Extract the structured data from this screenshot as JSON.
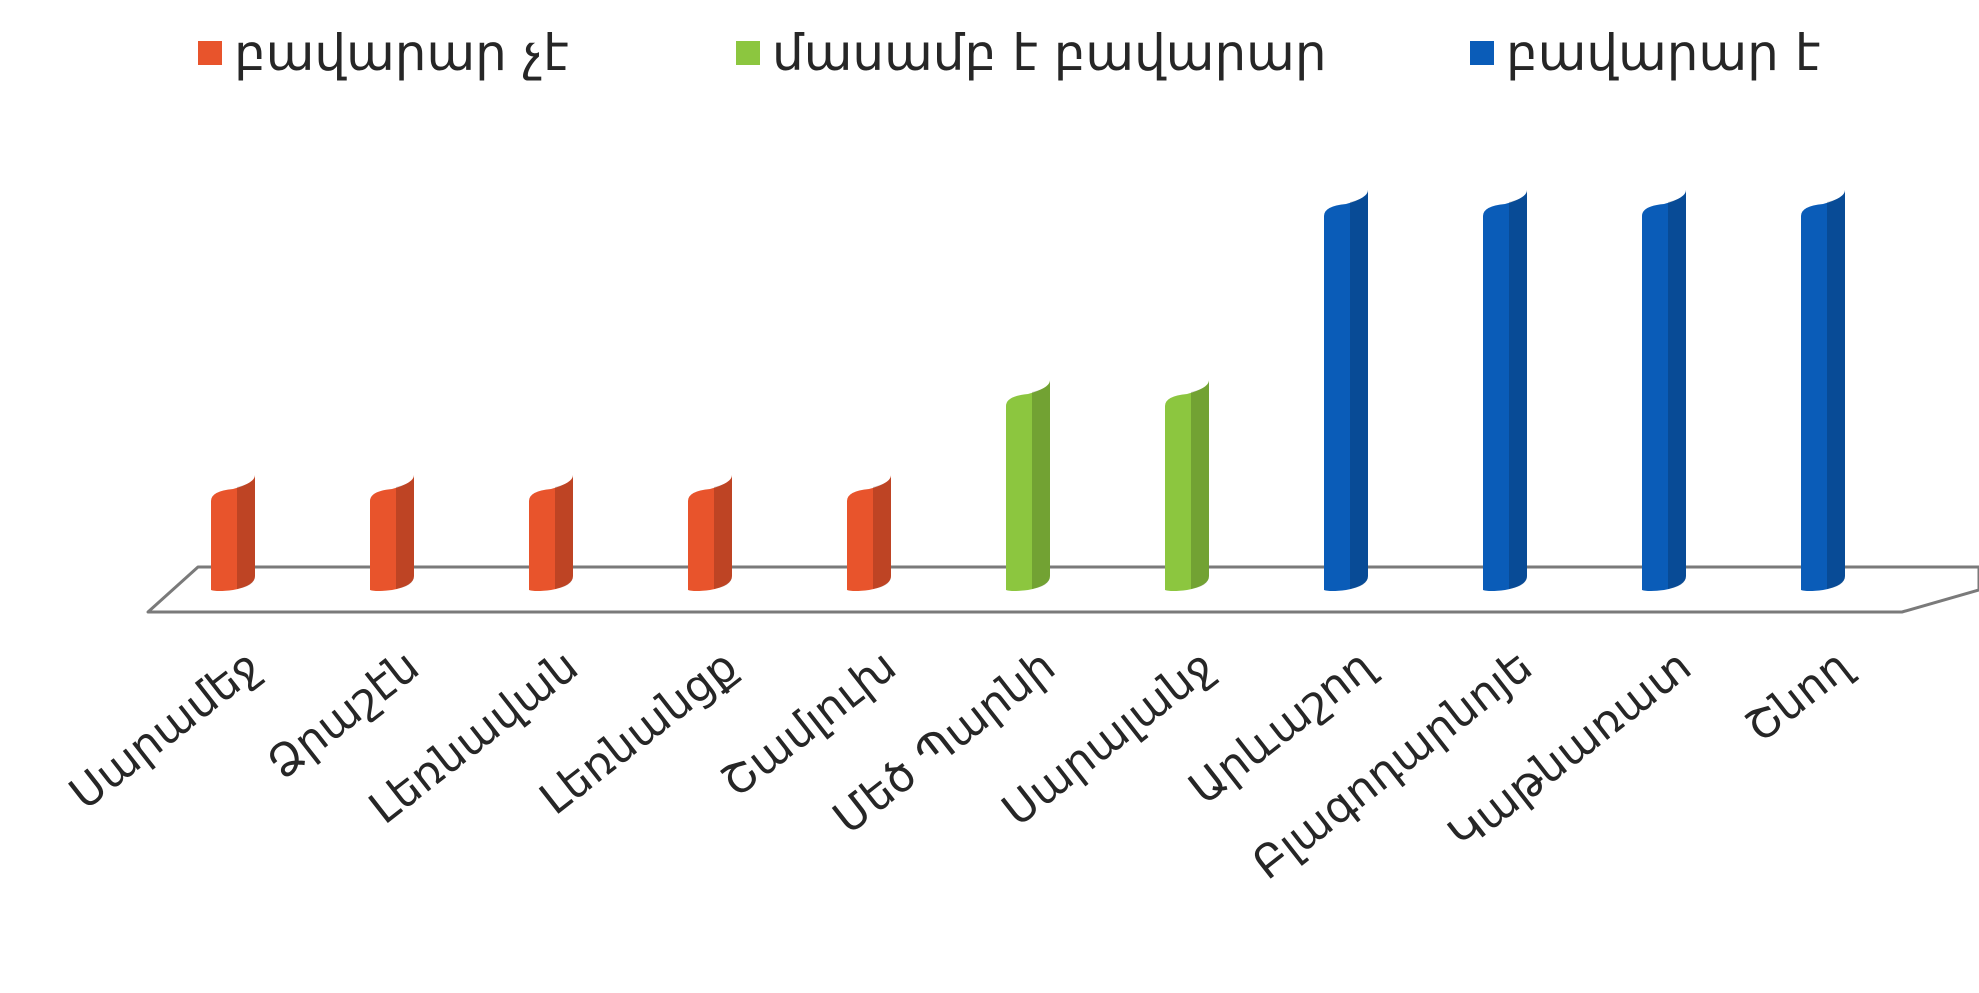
{
  "chart_data": {
    "type": "bar",
    "categories": [
      "Սարամեջ",
      "Ձրաշէն",
      "Լեռնավան",
      "Լեռնանցք",
      "Շամլուխ",
      "Մեծ Պարնի",
      "Սարալանջ",
      "Արևաշող",
      "Բլագոդարնոյե",
      "Կաթնառատ",
      "Շնող"
    ],
    "series": [
      {
        "name": "բավարար չէ",
        "color": "#e8542c",
        "values": [
          1,
          1,
          1,
          1,
          1,
          null,
          null,
          null,
          null,
          null,
          null
        ]
      },
      {
        "name": "մասամբ է բավարար",
        "color": "#8cc63f",
        "values": [
          null,
          null,
          null,
          null,
          null,
          2,
          2,
          null,
          null,
          null,
          null
        ]
      },
      {
        "name": "բավարար է",
        "color": "#0a5cb8",
        "values": [
          null,
          null,
          null,
          null,
          null,
          null,
          null,
          4,
          4,
          4,
          4
        ]
      }
    ],
    "ylim": [
      0,
      4.2
    ],
    "grid": false,
    "legend": "top"
  }
}
